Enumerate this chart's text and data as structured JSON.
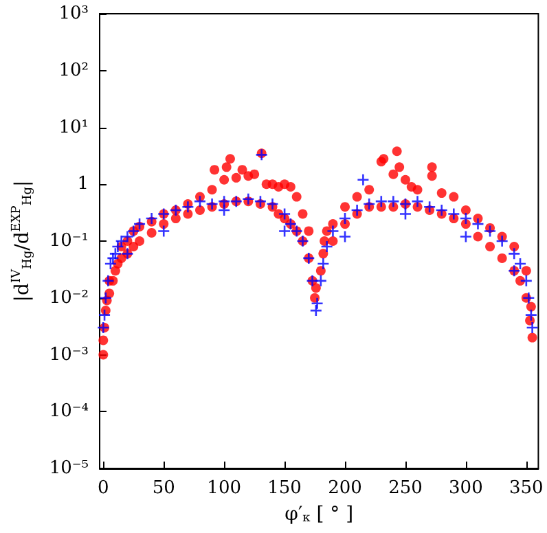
{
  "chart_data": {
    "type": "scatter",
    "xlabel": "φ′$_{κ}$ [ ° ]",
    "ylabel": "|d$^{IV}$$_{Hg}$/d$^{EXP}$$_{Hg}$|",
    "log": "y",
    "grid": false,
    "xlim": [
      -3,
      360
    ],
    "xticks": [
      0,
      50,
      100,
      150,
      200,
      250,
      300,
      350
    ],
    "ylim": [
      1e-05,
      1000
    ],
    "yticks": [
      {
        "value": 1e-05,
        "label": "10⁻⁵"
      },
      {
        "value": 0.0001,
        "label": "10⁻⁴"
      },
      {
        "value": 0.001,
        "label": "10⁻³"
      },
      {
        "value": 0.01,
        "label": "10⁻²"
      },
      {
        "value": 0.1,
        "label": "10⁻¹"
      },
      {
        "value": 1,
        "label": "1"
      },
      {
        "value": 10,
        "label": "10¹"
      },
      {
        "value": 100,
        "label": "10²"
      },
      {
        "value": 1000,
        "label": "10³"
      }
    ],
    "series": [
      {
        "color": "#ff0000",
        "marker": "circle",
        "x": [
          0,
          0,
          1,
          2,
          3,
          5,
          5,
          8,
          10,
          12,
          15,
          15,
          20,
          20,
          25,
          25,
          30,
          30,
          40,
          40,
          50,
          50,
          60,
          60,
          70,
          70,
          80,
          80,
          90,
          90,
          92,
          100,
          100,
          102,
          105,
          110,
          110,
          115,
          120,
          120,
          125,
          130,
          131,
          135,
          140,
          140,
          145,
          145,
          150,
          150,
          155,
          155,
          160,
          160,
          165,
          165,
          170,
          170,
          173,
          175,
          176,
          180,
          182,
          183,
          185,
          190,
          190,
          200,
          200,
          210,
          210,
          220,
          220,
          230,
          230,
          232,
          240,
          240,
          243,
          245,
          250,
          250,
          255,
          260,
          260,
          270,
          272,
          272,
          280,
          280,
          290,
          290,
          300,
          300,
          310,
          310,
          320,
          320,
          330,
          330,
          340,
          340,
          345,
          350,
          350,
          353,
          354,
          355
        ],
        "values": [
          0.001,
          0.0018,
          0.003,
          0.006,
          0.009,
          0.012,
          0.02,
          0.02,
          0.03,
          0.04,
          0.05,
          0.08,
          0.06,
          0.1,
          0.08,
          0.15,
          0.1,
          0.18,
          0.14,
          0.22,
          0.2,
          0.3,
          0.25,
          0.35,
          0.3,
          0.45,
          0.35,
          0.6,
          0.4,
          0.8,
          1.8,
          0.45,
          1.2,
          2,
          2.8,
          0.5,
          1.3,
          1.8,
          0.5,
          1.4,
          1.5,
          0.45,
          3.5,
          1,
          0.4,
          1,
          0.3,
          0.9,
          0.25,
          1,
          0.2,
          0.9,
          0.15,
          0.6,
          0.1,
          0.3,
          0.05,
          0.15,
          0.02,
          0.01,
          0.015,
          0.03,
          0.06,
          0.1,
          0.15,
          0.1,
          0.2,
          0.2,
          0.4,
          0.3,
          0.6,
          0.4,
          0.8,
          0.4,
          2.5,
          2.8,
          0.4,
          1.5,
          3.8,
          2,
          0.45,
          1.2,
          0.9,
          0.4,
          0.8,
          0.35,
          2,
          1.4,
          0.3,
          0.7,
          0.25,
          0.6,
          0.2,
          0.35,
          0.12,
          0.25,
          0.08,
          0.17,
          0.05,
          0.12,
          0.03,
          0.08,
          0.02,
          0.01,
          0.03,
          0.004,
          0.007,
          0.002
        ]
      },
      {
        "color": "#0000ff",
        "marker": "cross",
        "x": [
          0,
          1,
          2,
          4,
          6,
          8,
          10,
          12,
          15,
          20,
          20,
          25,
          30,
          40,
          50,
          50,
          60,
          70,
          80,
          90,
          100,
          100,
          110,
          120,
          130,
          131,
          140,
          150,
          150,
          155,
          160,
          165,
          170,
          173,
          176,
          177,
          180,
          182,
          185,
          190,
          200,
          200,
          210,
          215,
          220,
          230,
          240,
          250,
          250,
          260,
          270,
          280,
          290,
          300,
          300,
          310,
          320,
          330,
          340,
          340,
          345,
          350,
          352,
          354,
          355
        ],
        "values": [
          0.003,
          0.005,
          0.01,
          0.02,
          0.04,
          0.05,
          0.06,
          0.08,
          0.1,
          0.12,
          0.06,
          0.15,
          0.2,
          0.25,
          0.3,
          0.15,
          0.35,
          0.4,
          0.5,
          0.45,
          0.5,
          0.35,
          0.5,
          0.55,
          0.5,
          3.3,
          0.45,
          0.3,
          0.15,
          0.2,
          0.15,
          0.1,
          0.05,
          0.02,
          0.006,
          0.008,
          0.02,
          0.04,
          0.08,
          0.15,
          0.25,
          0.12,
          0.35,
          1.2,
          0.45,
          0.5,
          0.5,
          0.45,
          0.3,
          0.5,
          0.4,
          0.35,
          0.3,
          0.25,
          0.12,
          0.2,
          0.15,
          0.1,
          0.06,
          0.03,
          0.04,
          0.02,
          0.01,
          0.005,
          0.003
        ]
      }
    ]
  }
}
